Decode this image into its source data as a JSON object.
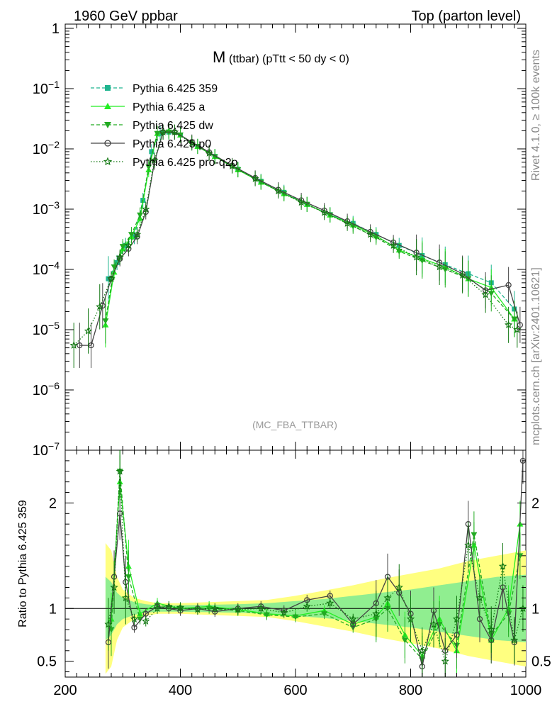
{
  "header": {
    "left": "1960 GeV ppbar",
    "right": "Top (parton level)"
  },
  "side": {
    "rivet": "Rivet 4.1.0, ≥ 100k events",
    "mcplots": "mcplots.cern.ch [arXiv:2401.10621]"
  },
  "plot_title": {
    "main": "M",
    "sub": "(ttbar) (pTtt < 50 dy < 0)"
  },
  "analysis_tag": "(MC_FBA_TTBAR)",
  "colors": {
    "band_yellow": "#ffff80",
    "band_green": "#90ee90",
    "s359": "#1fb58f",
    "a": "#22ee22",
    "dw": "#22aa22",
    "p0": "#444444",
    "proq2o": "#117711"
  },
  "chart_data": [
    {
      "type": "line",
      "title": "M (ttbar) (pTtt < 50 dy < 0)",
      "xlabel": "",
      "ylabel": "",
      "yscale": "log",
      "xlim": [
        200,
        1000
      ],
      "ylim": [
        1e-07,
        1
      ],
      "x_ticks": [
        "200",
        "400",
        "600",
        "800",
        "1000"
      ],
      "y_ticks": [
        {
          "value": 1,
          "label": "1"
        },
        {
          "value": 0.1,
          "label": "10^-1"
        },
        {
          "value": 0.01,
          "label": "10^-2"
        },
        {
          "value": 0.001,
          "label": "10^-3"
        },
        {
          "value": 0.0001,
          "label": "10^-4"
        },
        {
          "value": 1e-05,
          "label": "10^-5"
        },
        {
          "value": 1e-06,
          "label": "10^-6"
        },
        {
          "value": 1e-07,
          "label": "10^-7"
        }
      ],
      "legend_position": "top-left",
      "series": [
        {
          "name": "Pythia 6.425 359",
          "key": "s359",
          "marker": "square",
          "dash": "dashed",
          "x": [
            275,
            290,
            305,
            320,
            335,
            350,
            365,
            380,
            400,
            430,
            460,
            500,
            540,
            580,
            620,
            660,
            700,
            740,
            780,
            820,
            860,
            900,
            940,
            980
          ],
          "y": [
            7e-05,
            0.00013,
            0.00025,
            0.00035,
            0.0014,
            0.009,
            0.018,
            0.019,
            0.017,
            0.011,
            0.0075,
            0.0046,
            0.0029,
            0.0019,
            0.0012,
            0.00081,
            0.00058,
            0.00038,
            0.00025,
            0.00017,
            0.00012,
            8.5e-05,
            6e-05,
            2.2e-05
          ]
        },
        {
          "name": "Pythia 6.425 a",
          "key": "a",
          "marker": "triangle-up",
          "dash": "solid",
          "x": [
            270,
            285,
            300,
            315,
            330,
            345,
            360,
            380,
            400,
            430,
            460,
            500,
            540,
            580,
            620,
            660,
            700,
            740,
            780,
            820,
            860,
            900,
            940,
            980
          ],
          "y": [
            1.2e-05,
            9e-05,
            0.00022,
            0.00035,
            0.0007,
            0.0045,
            0.018,
            0.02,
            0.017,
            0.011,
            0.0075,
            0.0045,
            0.0028,
            0.0018,
            0.0012,
            0.0008,
            0.00055,
            0.00036,
            0.00021,
            0.00015,
            0.00011,
            7e-05,
            5e-05,
            1.5e-05
          ]
        },
        {
          "name": "Pythia 6.425 dw",
          "key": "dw",
          "marker": "triangle-down",
          "dash": "dashed",
          "x": [
            270,
            285,
            300,
            315,
            330,
            345,
            360,
            380,
            400,
            430,
            460,
            500,
            540,
            580,
            620,
            660,
            700,
            740,
            780,
            820,
            860,
            900,
            940,
            980
          ],
          "y": [
            1.4e-05,
            0.00011,
            0.00024,
            0.00038,
            0.0008,
            0.005,
            0.018,
            0.019,
            0.017,
            0.011,
            0.0074,
            0.0045,
            0.0028,
            0.0018,
            0.0012,
            0.0008,
            0.00052,
            0.00034,
            0.0002,
            0.00014,
            0.0001,
            7e-05,
            4e-05,
            1.5e-05
          ]
        },
        {
          "name": "Pythia 6.425 p0",
          "key": "p0",
          "marker": "circle-open",
          "dash": "solid",
          "x": [
            225,
            245,
            265,
            280,
            295,
            310,
            325,
            340,
            355,
            370,
            390,
            420,
            450,
            490,
            530,
            570,
            610,
            650,
            690,
            730,
            770,
            810,
            850,
            890,
            930,
            970,
            990
          ],
          "y": [
            5.5e-06,
            5.5e-06,
            2.5e-05,
            7e-05,
            0.00015,
            0.00022,
            0.00035,
            0.0009,
            0.006,
            0.019,
            0.019,
            0.013,
            0.0088,
            0.0053,
            0.0033,
            0.0021,
            0.0014,
            0.00095,
            0.00063,
            0.00042,
            0.00028,
            0.00019,
            0.00013,
            8.5e-05,
            4.5e-05,
            5.5e-05,
            1.2e-05
          ]
        },
        {
          "name": "Pythia 6.425 pro-q2o",
          "key": "proq2o",
          "marker": "star-open",
          "dash": "dotted",
          "x": [
            215,
            240,
            260,
            280,
            295,
            310,
            325,
            340,
            355,
            370,
            390,
            420,
            450,
            490,
            530,
            570,
            610,
            650,
            690,
            730,
            770,
            810,
            850,
            890,
            930,
            970,
            985
          ],
          "y": [
            5.5e-06,
            9.5e-06,
            2.4e-05,
            7e-05,
            0.00016,
            0.00025,
            0.00038,
            0.001,
            0.0065,
            0.019,
            0.019,
            0.0125,
            0.0085,
            0.0052,
            0.0032,
            0.002,
            0.0013,
            0.00088,
            0.00058,
            0.00038,
            0.00025,
            0.00016,
            0.00011,
            8e-05,
            3.8e-05,
            1.2e-05,
            1e-05
          ]
        }
      ]
    },
    {
      "type": "line",
      "title": "",
      "xlabel": "",
      "ylabel": "Ratio to Pythia 6.425 359",
      "xlim": [
        200,
        1000
      ],
      "ylim": [
        0.35,
        2.5
      ],
      "x_ticks": [
        "200",
        "400",
        "600",
        "800",
        "1000"
      ],
      "y_ticks": [
        {
          "value": 0.5,
          "label": "0.5"
        },
        {
          "value": 1,
          "label": "1"
        },
        {
          "value": 2,
          "label": "2"
        }
      ],
      "bands": {
        "x": [
          270,
          280,
          290,
          300,
          320,
          340,
          360,
          400,
          450,
          500,
          550,
          600,
          650,
          700,
          750,
          800,
          850,
          900,
          950,
          1000
        ],
        "yellow_half_width": [
          0.62,
          0.55,
          0.3,
          0.18,
          0.1,
          0.07,
          0.05,
          0.05,
          0.06,
          0.07,
          0.08,
          0.12,
          0.17,
          0.22,
          0.28,
          0.33,
          0.38,
          0.45,
          0.5,
          0.55
        ],
        "green_half_width": [
          0.3,
          0.25,
          0.15,
          0.1,
          0.06,
          0.04,
          0.03,
          0.03,
          0.035,
          0.04,
          0.05,
          0.07,
          0.09,
          0.12,
          0.15,
          0.18,
          0.22,
          0.26,
          0.3,
          0.32
        ]
      },
      "series": [
        {
          "name": "Pythia 6.425 a",
          "key": "a",
          "x": [
            280,
            295,
            310,
            330,
            360,
            400,
            450,
            500,
            550,
            600,
            650,
            700,
            740,
            760,
            790,
            820,
            850,
            880,
            910,
            940,
            970,
            990
          ],
          "y": [
            0.9,
            2.2,
            1.4,
            0.95,
            1.05,
            1.0,
            1.02,
            0.99,
            0.95,
            0.93,
            0.98,
            0.85,
            0.92,
            1.05,
            0.75,
            0.55,
            0.9,
            0.6,
            1.6,
            0.7,
            1.0,
            1.8
          ]
        },
        {
          "name": "Pythia 6.425 dw",
          "key": "dw",
          "x": [
            280,
            295,
            310,
            330,
            360,
            400,
            450,
            500,
            550,
            600,
            650,
            700,
            740,
            760,
            790,
            820,
            850,
            880,
            910,
            940,
            970,
            990
          ],
          "y": [
            0.8,
            2.3,
            1.3,
            0.9,
            1.03,
            1.0,
            1.0,
            0.98,
            0.94,
            0.92,
            0.95,
            0.82,
            0.9,
            1.0,
            0.7,
            0.52,
            0.85,
            0.65,
            1.7,
            0.75,
            0.95,
            1.5
          ]
        },
        {
          "name": "Pythia 6.425 p0",
          "key": "p0",
          "x": [
            275,
            285,
            295,
            305,
            320,
            340,
            360,
            380,
            400,
            430,
            460,
            500,
            540,
            580,
            620,
            660,
            700,
            740,
            760,
            780,
            800,
            820,
            840,
            860,
            880,
            900,
            920,
            940,
            960,
            980,
            995
          ],
          "y": [
            0.68,
            1.3,
            1.9,
            1.25,
            0.82,
            0.95,
            1.02,
            1.0,
            0.98,
            1.0,
            0.97,
            1.0,
            1.02,
            0.98,
            1.08,
            1.12,
            0.85,
            1.05,
            1.3,
            1.15,
            0.95,
            0.45,
            0.98,
            0.6,
            0.75,
            1.8,
            0.9,
            0.7,
            1.2,
            0.68,
            2.4
          ]
        },
        {
          "name": "Pythia 6.425 pro-q2o",
          "key": "proq2o",
          "x": [
            275,
            285,
            295,
            305,
            320,
            340,
            360,
            380,
            400,
            430,
            460,
            500,
            540,
            580,
            620,
            660,
            700,
            740,
            760,
            780,
            800,
            820,
            840,
            860,
            880,
            900,
            920,
            940,
            960,
            980,
            995
          ],
          "y": [
            0.85,
            1.2,
            2.3,
            1.1,
            0.9,
            0.88,
            1.0,
            1.02,
            1.01,
            0.99,
            1.0,
            0.99,
            1.0,
            0.96,
            1.02,
            1.05,
            0.9,
            0.95,
            1.1,
            1.2,
            0.9,
            0.6,
            0.85,
            0.5,
            0.9,
            1.6,
            1.1,
            0.8,
            1.4,
            0.7,
            1.0
          ]
        }
      ]
    }
  ]
}
